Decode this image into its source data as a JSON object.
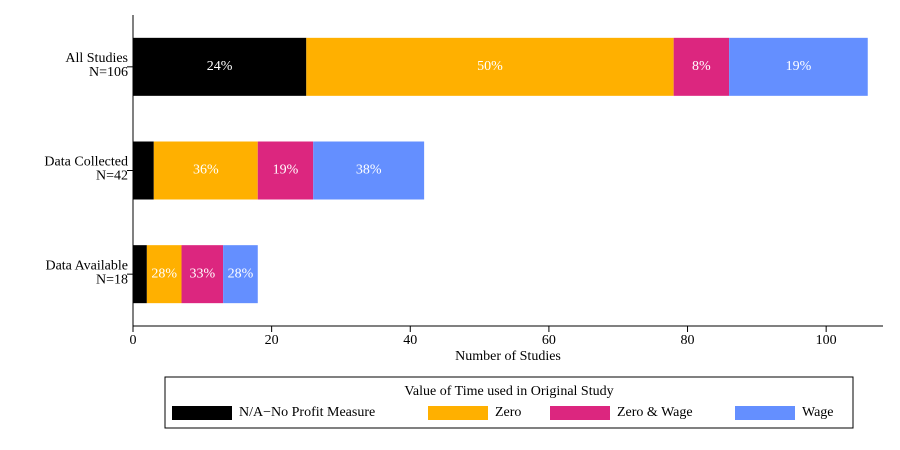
{
  "chart_data": {
    "type": "stacked-barh",
    "categories": [
      [
        "All Studies",
        "N=106"
      ],
      [
        "Data Collected",
        "N=42"
      ],
      [
        "Data Available",
        "N=18"
      ]
    ],
    "series": [
      {
        "name": "N/A−No Profit Measure",
        "color": "#000000",
        "values": [
          25,
          3,
          2
        ],
        "value_labels": [
          "24%",
          null,
          null
        ]
      },
      {
        "name": "Zero",
        "color": "#ffb000",
        "values": [
          53,
          15,
          5
        ],
        "value_labels": [
          "50%",
          "36%",
          "28%"
        ]
      },
      {
        "name": "Zero & Wage",
        "color": "#dc267f",
        "values": [
          8,
          8,
          6
        ],
        "value_labels": [
          "8%",
          "19%",
          "33%"
        ]
      },
      {
        "name": "Wage",
        "color": "#648fff",
        "values": [
          20,
          16,
          5
        ],
        "value_labels": [
          "19%",
          "38%",
          "28%"
        ]
      }
    ],
    "xlabel": "Number of Studies",
    "xlim": [
      0,
      108.2
    ],
    "xticks": [
      0,
      20,
      40,
      60,
      80,
      100
    ],
    "legend_title": "Value of Time used in Original Study",
    "legend_position": "bottom"
  }
}
